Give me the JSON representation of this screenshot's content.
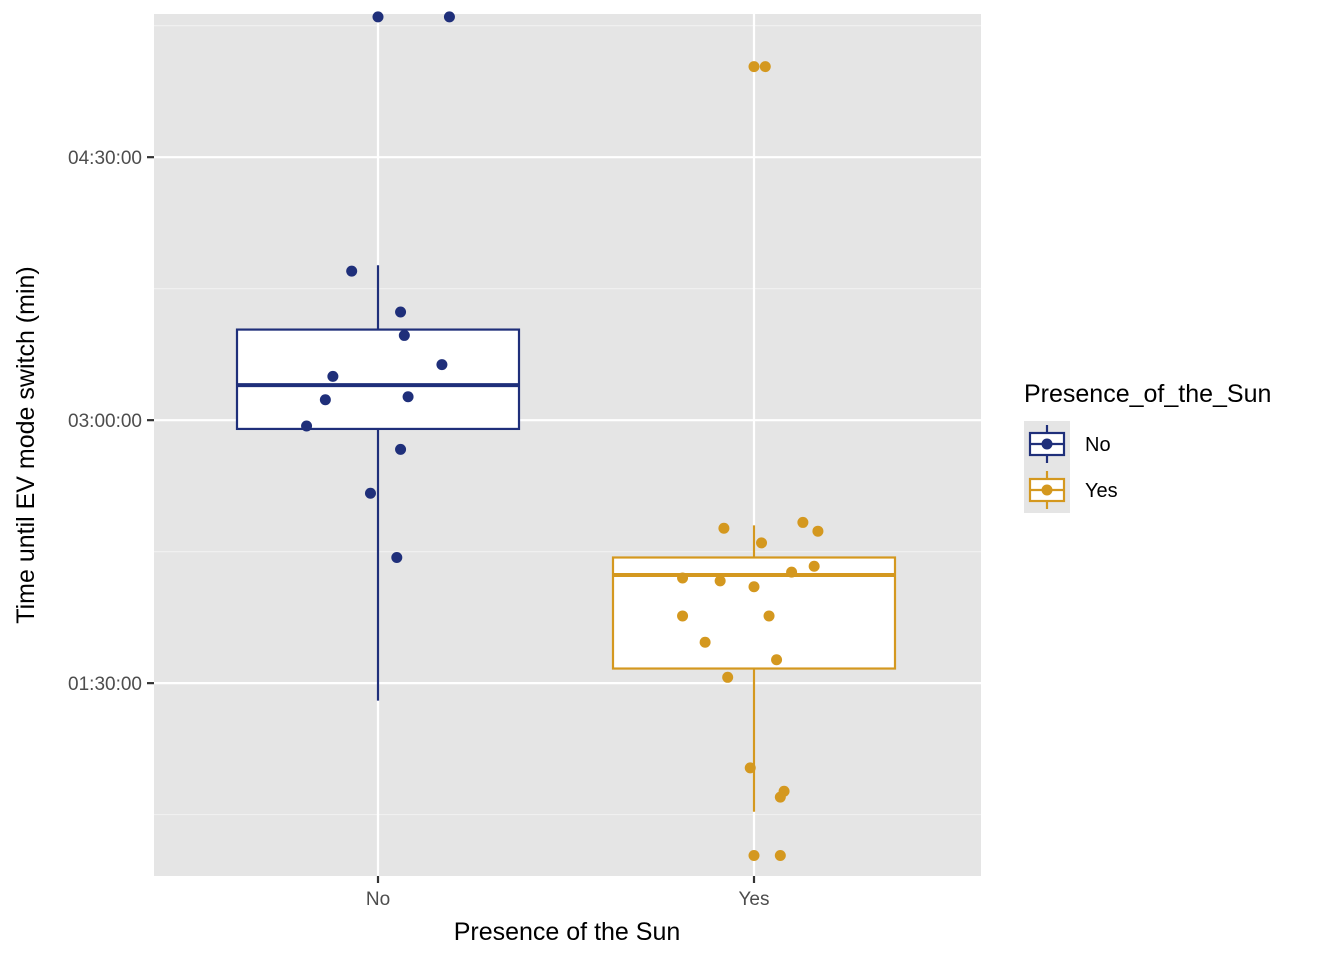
{
  "chart_data": {
    "type": "boxplot-jitter",
    "xlabel": "Presence of the Sun",
    "ylabel": "Time until EV mode switch (min)",
    "ylim": [
      24,
      319
    ],
    "y_major_ticks": [
      90,
      180,
      270
    ],
    "y_tick_labels": [
      "01:30:00",
      "03:00:00",
      "04:30:00"
    ],
    "y_minor_ticks": [
      45,
      135,
      225,
      315
    ],
    "grid": true,
    "categories": [
      "No",
      "Yes"
    ],
    "legend": {
      "title": "Presence_of_the_Sun",
      "position": "right",
      "entries": [
        "No",
        "Yes"
      ]
    },
    "colors": {
      "No": "#1f2f7a",
      "Yes": "#d4981f"
    },
    "boxes": [
      {
        "category": "No",
        "whisker_low": 84,
        "q1": 177,
        "median": 192,
        "q3": 211,
        "whisker_high": 233
      },
      {
        "category": "Yes",
        "whisker_low": 46,
        "q1": 95,
        "median": 127,
        "q3": 133,
        "whisker_high": 144
      }
    ],
    "points": [
      {
        "category": "No",
        "jitter": 0.0,
        "y": 318
      },
      {
        "category": "No",
        "jitter": 0.19,
        "y": 318
      },
      {
        "category": "No",
        "jitter": -0.07,
        "y": 231
      },
      {
        "category": "No",
        "jitter": 0.06,
        "y": 217
      },
      {
        "category": "No",
        "jitter": 0.07,
        "y": 209
      },
      {
        "category": "No",
        "jitter": 0.17,
        "y": 199
      },
      {
        "category": "No",
        "jitter": -0.12,
        "y": 195
      },
      {
        "category": "No",
        "jitter": -0.14,
        "y": 187
      },
      {
        "category": "No",
        "jitter": 0.08,
        "y": 188
      },
      {
        "category": "No",
        "jitter": -0.19,
        "y": 178
      },
      {
        "category": "No",
        "jitter": 0.06,
        "y": 170
      },
      {
        "category": "No",
        "jitter": -0.02,
        "y": 155
      },
      {
        "category": "No",
        "jitter": 0.05,
        "y": 133
      },
      {
        "category": "Yes",
        "jitter": 0.0,
        "y": 301
      },
      {
        "category": "Yes",
        "jitter": 0.03,
        "y": 301
      },
      {
        "category": "Yes",
        "jitter": 0.13,
        "y": 145
      },
      {
        "category": "Yes",
        "jitter": 0.17,
        "y": 142
      },
      {
        "category": "Yes",
        "jitter": -0.08,
        "y": 143
      },
      {
        "category": "Yes",
        "jitter": 0.02,
        "y": 138
      },
      {
        "category": "Yes",
        "jitter": 0.16,
        "y": 130
      },
      {
        "category": "Yes",
        "jitter": 0.1,
        "y": 128
      },
      {
        "category": "Yes",
        "jitter": -0.19,
        "y": 126
      },
      {
        "category": "Yes",
        "jitter": -0.09,
        "y": 125
      },
      {
        "category": "Yes",
        "jitter": 0.0,
        "y": 123
      },
      {
        "category": "Yes",
        "jitter": -0.19,
        "y": 113
      },
      {
        "category": "Yes",
        "jitter": 0.04,
        "y": 113
      },
      {
        "category": "Yes",
        "jitter": -0.13,
        "y": 104
      },
      {
        "category": "Yes",
        "jitter": 0.06,
        "y": 98
      },
      {
        "category": "Yes",
        "jitter": -0.07,
        "y": 92
      },
      {
        "category": "Yes",
        "jitter": -0.01,
        "y": 61
      },
      {
        "category": "Yes",
        "jitter": 0.08,
        "y": 53
      },
      {
        "category": "Yes",
        "jitter": 0.07,
        "y": 51
      },
      {
        "category": "Yes",
        "jitter": 0.0,
        "y": 31
      },
      {
        "category": "Yes",
        "jitter": 0.07,
        "y": 31
      }
    ]
  }
}
